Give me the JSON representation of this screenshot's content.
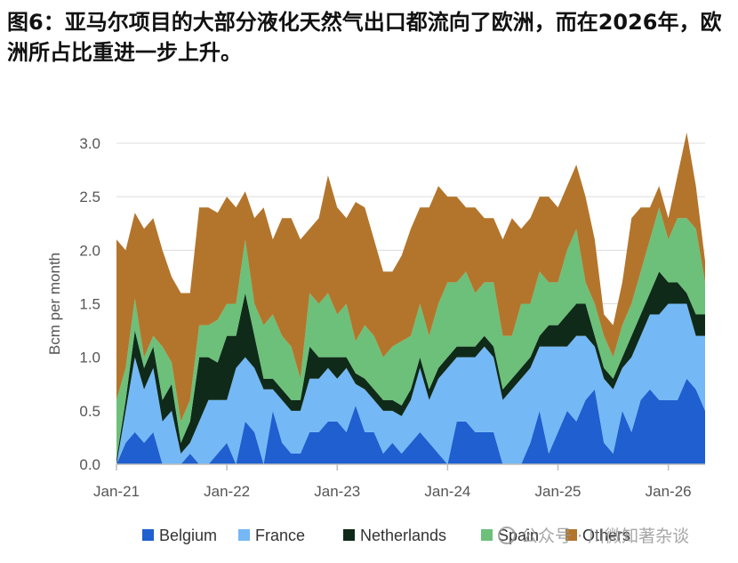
{
  "title": "图6：亚马尔项目的大部分液化天然气出口都流向了欧洲，而在2026年，欧洲所占比重进一步上升。",
  "watermark": "公众号 · 川微知著杂谈",
  "chart_data": {
    "type": "area",
    "stacked": true,
    "ylabel": "Bcm per month",
    "ylim": [
      0,
      3.0
    ],
    "yticks": [
      0.0,
      0.5,
      1.0,
      1.5,
      2.0,
      2.5,
      3.0
    ],
    "ytick_labels": [
      "0.0",
      "0.5",
      "1.0",
      "1.5",
      "2.0",
      "2.5",
      "3.0"
    ],
    "xticks": [
      {
        "label": "Jan-21",
        "index": 0
      },
      {
        "label": "Jan-22",
        "index": 12
      },
      {
        "label": "Jan-23",
        "index": 24
      },
      {
        "label": "Jan-24",
        "index": 36
      },
      {
        "label": "Jan-25",
        "index": 48
      },
      {
        "label": "Jan-26",
        "index": 60
      }
    ],
    "grid": "horizontal",
    "legend_position": "bottom",
    "x_start": "2021-01",
    "x_end": "2026-05",
    "series": [
      {
        "name": "Belgium",
        "color": "#1f5fcf",
        "values": [
          0.0,
          0.2,
          0.3,
          0.2,
          0.3,
          0.0,
          0.0,
          0.0,
          0.1,
          0.0,
          0.0,
          0.1,
          0.2,
          0.0,
          0.4,
          0.3,
          0.0,
          0.5,
          0.2,
          0.1,
          0.1,
          0.3,
          0.3,
          0.4,
          0.4,
          0.3,
          0.55,
          0.3,
          0.3,
          0.1,
          0.2,
          0.1,
          0.2,
          0.3,
          0.2,
          0.1,
          0.0,
          0.4,
          0.4,
          0.3,
          0.3,
          0.3,
          0.0,
          0.0,
          0.0,
          0.2,
          0.5,
          0.1,
          0.3,
          0.5,
          0.4,
          0.6,
          0.7,
          0.2,
          0.1,
          0.5,
          0.3,
          0.6,
          0.7,
          0.6,
          0.6,
          0.6,
          0.8,
          0.7,
          0.5
        ]
      },
      {
        "name": "France",
        "color": "#74b8f5",
        "values": [
          0.0,
          0.3,
          0.7,
          0.5,
          0.6,
          0.4,
          0.5,
          0.1,
          0.1,
          0.4,
          0.6,
          0.5,
          0.4,
          0.9,
          0.6,
          0.6,
          0.7,
          0.2,
          0.4,
          0.4,
          0.4,
          0.5,
          0.5,
          0.5,
          0.4,
          0.6,
          0.2,
          0.4,
          0.3,
          0.4,
          0.3,
          0.35,
          0.4,
          0.6,
          0.4,
          0.7,
          0.9,
          0.6,
          0.6,
          0.7,
          0.8,
          0.7,
          0.6,
          0.7,
          0.8,
          0.7,
          0.6,
          1.0,
          0.8,
          0.6,
          0.8,
          0.6,
          0.4,
          0.6,
          0.6,
          0.4,
          0.7,
          0.6,
          0.7,
          0.8,
          0.9,
          0.9,
          0.7,
          0.5,
          0.7
        ]
      },
      {
        "name": "Netherlands",
        "color": "#0f2a19",
        "values": [
          0.05,
          0.1,
          0.25,
          0.2,
          0.2,
          0.2,
          0.25,
          0.1,
          0.2,
          0.6,
          0.4,
          0.35,
          0.6,
          0.3,
          0.6,
          0.3,
          0.1,
          0.1,
          0.1,
          0.1,
          0.1,
          0.3,
          0.2,
          0.1,
          0.2,
          0.1,
          0.1,
          0.1,
          0.1,
          0.1,
          0.1,
          0.1,
          0.1,
          0.1,
          0.1,
          0.1,
          0.1,
          0.1,
          0.1,
          0.1,
          0.1,
          0.1,
          0.1,
          0.1,
          0.1,
          0.1,
          0.1,
          0.2,
          0.2,
          0.3,
          0.3,
          0.3,
          0.1,
          0.1,
          0.1,
          0.1,
          0.2,
          0.2,
          0.2,
          0.4,
          0.2,
          0.2,
          0.1,
          0.2,
          0.2
        ]
      },
      {
        "name": "Spain",
        "color": "#6cc07a",
        "values": [
          0.55,
          0.3,
          0.3,
          0.1,
          0.1,
          0.5,
          0.2,
          0.2,
          0.2,
          0.3,
          0.3,
          0.4,
          0.3,
          0.3,
          0.5,
          0.3,
          0.5,
          0.6,
          0.5,
          0.5,
          0.2,
          0.5,
          0.5,
          0.6,
          0.4,
          0.5,
          0.3,
          0.5,
          0.5,
          0.4,
          0.5,
          0.6,
          0.5,
          0.5,
          0.5,
          0.6,
          0.7,
          0.6,
          0.7,
          0.5,
          0.5,
          0.6,
          0.5,
          0.4,
          0.6,
          0.5,
          0.6,
          0.4,
          0.4,
          0.6,
          0.7,
          0.2,
          0.3,
          0.3,
          0.2,
          0.3,
          0.3,
          0.4,
          0.5,
          0.6,
          0.4,
          0.6,
          0.7,
          0.8,
          0.3
        ]
      },
      {
        "name": "Others",
        "color": "#b3752c",
        "values": [
          1.5,
          1.1,
          0.8,
          1.2,
          1.1,
          0.9,
          0.8,
          1.2,
          1.0,
          1.1,
          1.1,
          1.0,
          1.0,
          0.9,
          0.45,
          0.8,
          1.1,
          0.7,
          1.1,
          1.2,
          1.3,
          0.6,
          0.8,
          1.1,
          1.0,
          0.8,
          1.3,
          1.1,
          0.9,
          0.8,
          0.7,
          0.8,
          1.0,
          0.9,
          1.2,
          1.1,
          0.8,
          0.8,
          0.6,
          0.8,
          0.6,
          0.6,
          0.9,
          1.1,
          0.7,
          0.8,
          0.7,
          0.8,
          0.7,
          0.6,
          0.6,
          0.8,
          0.6,
          0.2,
          0.3,
          0.4,
          0.8,
          0.6,
          0.3,
          0.2,
          0.2,
          0.4,
          0.8,
          0.4,
          0.2
        ]
      }
    ]
  }
}
